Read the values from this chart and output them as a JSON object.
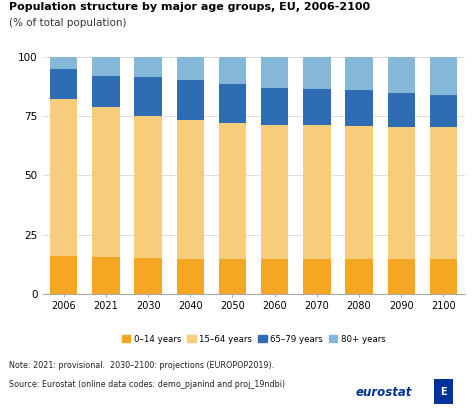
{
  "title": "Population structure by major age groups, EU, 2006-2100",
  "subtitle": "(% of total population)",
  "years": [
    2006,
    2021,
    2030,
    2040,
    2050,
    2060,
    2070,
    2080,
    2090,
    2100
  ],
  "age_0_14": [
    16.0,
    15.5,
    15.0,
    14.5,
    14.5,
    14.5,
    14.5,
    14.5,
    14.5,
    14.5
  ],
  "age_15_64": [
    66.5,
    63.5,
    60.0,
    59.0,
    57.5,
    57.0,
    57.0,
    56.5,
    56.0,
    56.0
  ],
  "age_65_79": [
    12.5,
    13.0,
    16.5,
    17.0,
    16.5,
    15.5,
    15.0,
    15.0,
    14.5,
    13.5
  ],
  "age_80plus": [
    5.0,
    8.0,
    8.5,
    9.5,
    11.5,
    13.0,
    13.5,
    14.0,
    15.0,
    16.0
  ],
  "colors": {
    "0_14": "#F5A623",
    "15_64": "#F7CC7A",
    "65_79": "#2E6DB4",
    "80plus": "#85B8D8"
  },
  "legend_labels": [
    "0–14 years",
    "15–64 years",
    "65–79 years",
    "80+ years"
  ],
  "ylim": [
    0,
    100
  ],
  "yticks": [
    0,
    25,
    50,
    75,
    100
  ],
  "note": "Note: 2021: provisional.  2030–2100: projections (EUROPOP2019).",
  "source": "Source: Eurostat (online data codes: demo_pjanind and proj_19ndbi)",
  "background_color": "#ffffff",
  "bar_width": 0.65
}
